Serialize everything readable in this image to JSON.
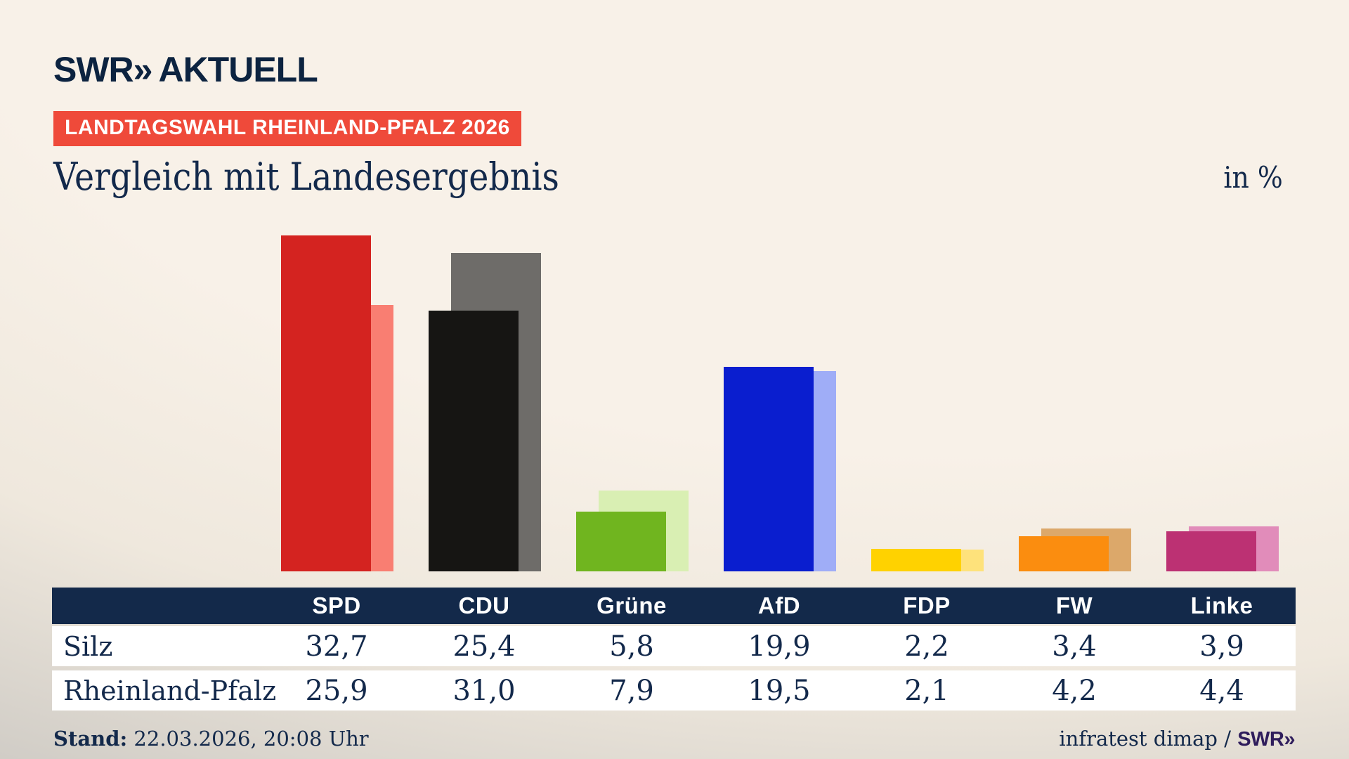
{
  "brand": {
    "logo": "SWR",
    "logo_chevrons": "»",
    "logo_suffix": "AKTUELL"
  },
  "header": {
    "badge": "LANDTAGSWAHL RHEINLAND-PFALZ 2026",
    "title": "Vergleich mit Landesergebnis",
    "unit_label": "in %"
  },
  "chart_data": {
    "type": "bar",
    "categories": [
      "SPD",
      "CDU",
      "Grüne",
      "AfD",
      "FDP",
      "FW",
      "Linke"
    ],
    "series": [
      {
        "name": "Silz",
        "values": [
          32.7,
          25.4,
          5.8,
          19.9,
          2.2,
          3.4,
          3.9
        ]
      },
      {
        "name": "Rheinland-Pfalz",
        "values": [
          25.9,
          31.0,
          7.9,
          19.5,
          2.1,
          4.2,
          4.4
        ]
      }
    ],
    "colors": {
      "main": [
        "#d42320",
        "#161513",
        "#70b51f",
        "#0a1ecf",
        "#ffd200",
        "#fb8d0f",
        "#bc3173"
      ],
      "light": [
        "#f97e72",
        "#6e6c69",
        "#d9efb3",
        "#9fadf7",
        "#fee27b",
        "#dca86a",
        "#e18cba"
      ]
    },
    "title": "Vergleich mit Landesergebnis",
    "xlabel": "",
    "ylabel": "in %",
    "ylim": [
      0,
      35
    ],
    "grid": false,
    "legend": "none (series distinguished by dark main bar = Silz, light offset bar = Rheinland-Pfalz)"
  },
  "table": {
    "columns": [
      "SPD",
      "CDU",
      "Grüne",
      "AfD",
      "FDP",
      "FW",
      "Linke"
    ],
    "rows": [
      {
        "label": "Silz",
        "values": [
          "32,7",
          "25,4",
          "5,8",
          "19,9",
          "2,2",
          "3,4",
          "3,9"
        ]
      },
      {
        "label": "Rheinland-Pfalz",
        "values": [
          "25,9",
          "31,0",
          "7,9",
          "19,5",
          "2,1",
          "4,2",
          "4,4"
        ]
      }
    ]
  },
  "footer": {
    "stand_label": "Stand:",
    "stand_value": "22.03.2026, 20:08 Uhr",
    "source_text": "infratest dimap / ",
    "source_brand": "SWR»"
  }
}
